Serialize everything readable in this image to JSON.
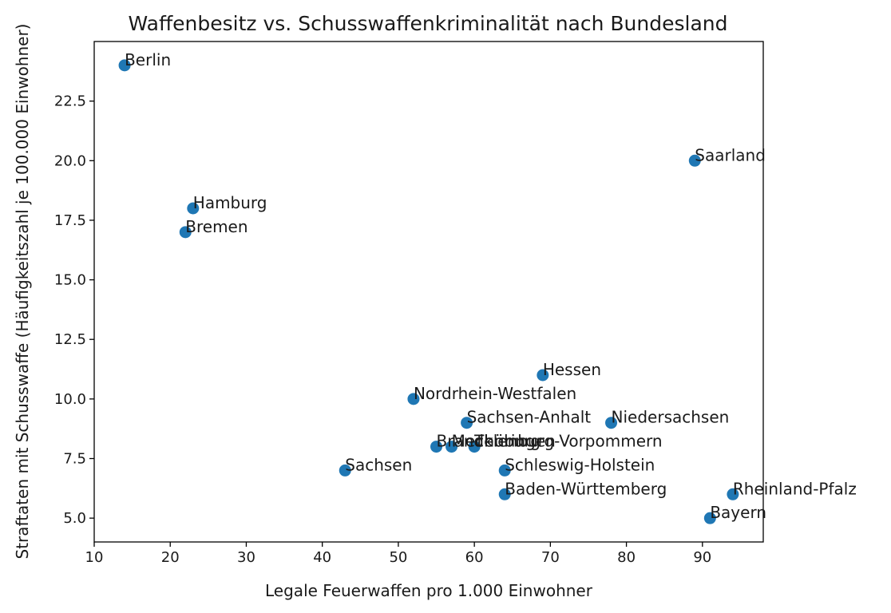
{
  "chart_data": {
    "type": "scatter",
    "title": "Waffenbesitz vs. Schusswaffenkriminalität nach Bundesland",
    "xlabel": "Legale Feuerwaffen pro 1.000 Einwohner",
    "ylabel": "Straftaten mit Schusswaffe (Häufigkeitszahl je 100.000 Einwohner)",
    "xlim": [
      10,
      98
    ],
    "ylim": [
      4.0,
      25.0
    ],
    "xticks": [
      10,
      20,
      30,
      40,
      50,
      60,
      70,
      80,
      90
    ],
    "xtick_labels": [
      "10",
      "20",
      "30",
      "40",
      "50",
      "60",
      "70",
      "80",
      "90"
    ],
    "yticks": [
      5.0,
      7.5,
      10.0,
      12.5,
      15.0,
      17.5,
      20.0,
      22.5
    ],
    "ytick_labels": [
      "5.0",
      "7.5",
      "10.0",
      "12.5",
      "15.0",
      "17.5",
      "20.0",
      "22.5"
    ],
    "color": "#1f77b4",
    "points": [
      {
        "label": "Berlin",
        "x": 14,
        "y": 24
      },
      {
        "label": "Saarland",
        "x": 89,
        "y": 20
      },
      {
        "label": "Hamburg",
        "x": 23,
        "y": 18
      },
      {
        "label": "Bremen",
        "x": 22,
        "y": 17
      },
      {
        "label": "Hessen",
        "x": 69,
        "y": 11
      },
      {
        "label": "Nordrhein-Westfalen",
        "x": 52,
        "y": 10
      },
      {
        "label": "Sachsen-Anhalt",
        "x": 59,
        "y": 9
      },
      {
        "label": "Niedersachsen",
        "x": 78,
        "y": 9
      },
      {
        "label": "Brandenburg",
        "x": 55,
        "y": 8
      },
      {
        "label": "Mecklenburg-Vorpommern",
        "x": 57,
        "y": 8
      },
      {
        "label": "Thüringen",
        "x": 60,
        "y": 8
      },
      {
        "label": "Sachsen",
        "x": 43,
        "y": 7
      },
      {
        "label": "Schleswig-Holstein",
        "x": 64,
        "y": 7
      },
      {
        "label": "Baden-Württemberg",
        "x": 64,
        "y": 6
      },
      {
        "label": "Rheinland-Pfalz",
        "x": 94,
        "y": 6
      },
      {
        "label": "Bayern",
        "x": 91,
        "y": 5
      }
    ]
  }
}
